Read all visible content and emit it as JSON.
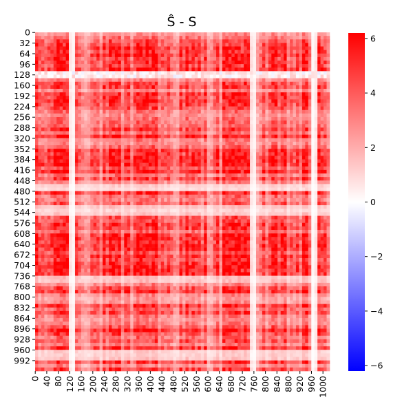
{
  "chart_data": {
    "type": "heatmap",
    "title": "Ŝ - S",
    "xlabel": "",
    "ylabel": "",
    "grid": false,
    "n_rows": 1024,
    "n_cols": 1024,
    "x_tick_labels": [
      "0",
      "40",
      "80",
      "120",
      "160",
      "200",
      "240",
      "280",
      "320",
      "360",
      "400",
      "440",
      "480",
      "520",
      "560",
      "600",
      "640",
      "680",
      "720",
      "760",
      "800",
      "840",
      "880",
      "920",
      "960",
      "1000"
    ],
    "y_tick_labels": [
      "0",
      "32",
      "64",
      "96",
      "128",
      "160",
      "192",
      "224",
      "256",
      "288",
      "320",
      "352",
      "384",
      "416",
      "448",
      "480",
      "512",
      "544",
      "576",
      "608",
      "640",
      "672",
      "704",
      "736",
      "768",
      "800",
      "832",
      "864",
      "896",
      "928",
      "960",
      "992"
    ],
    "colorbar": {
      "colormap": "bwr",
      "vmin": -6.2,
      "vmax": 6.2,
      "ticks": [
        "6",
        "4",
        "2",
        "0",
        "−2",
        "−4",
        "−6"
      ],
      "tick_values": [
        6,
        4,
        2,
        0,
        -2,
        -4,
        -6
      ],
      "colors": {
        "low": "#0000ff",
        "mid": "#ffffff",
        "high": "#ff0000"
      }
    },
    "value_summary": {
      "typical_range": [
        0,
        6
      ],
      "dominant_sign": "positive",
      "note": "values shown are mostly 0 to 6 (white to red) with a band of near-zero / slightly negative values around rows 112–128; full 1024×1024 matrix not individually readable"
    }
  }
}
